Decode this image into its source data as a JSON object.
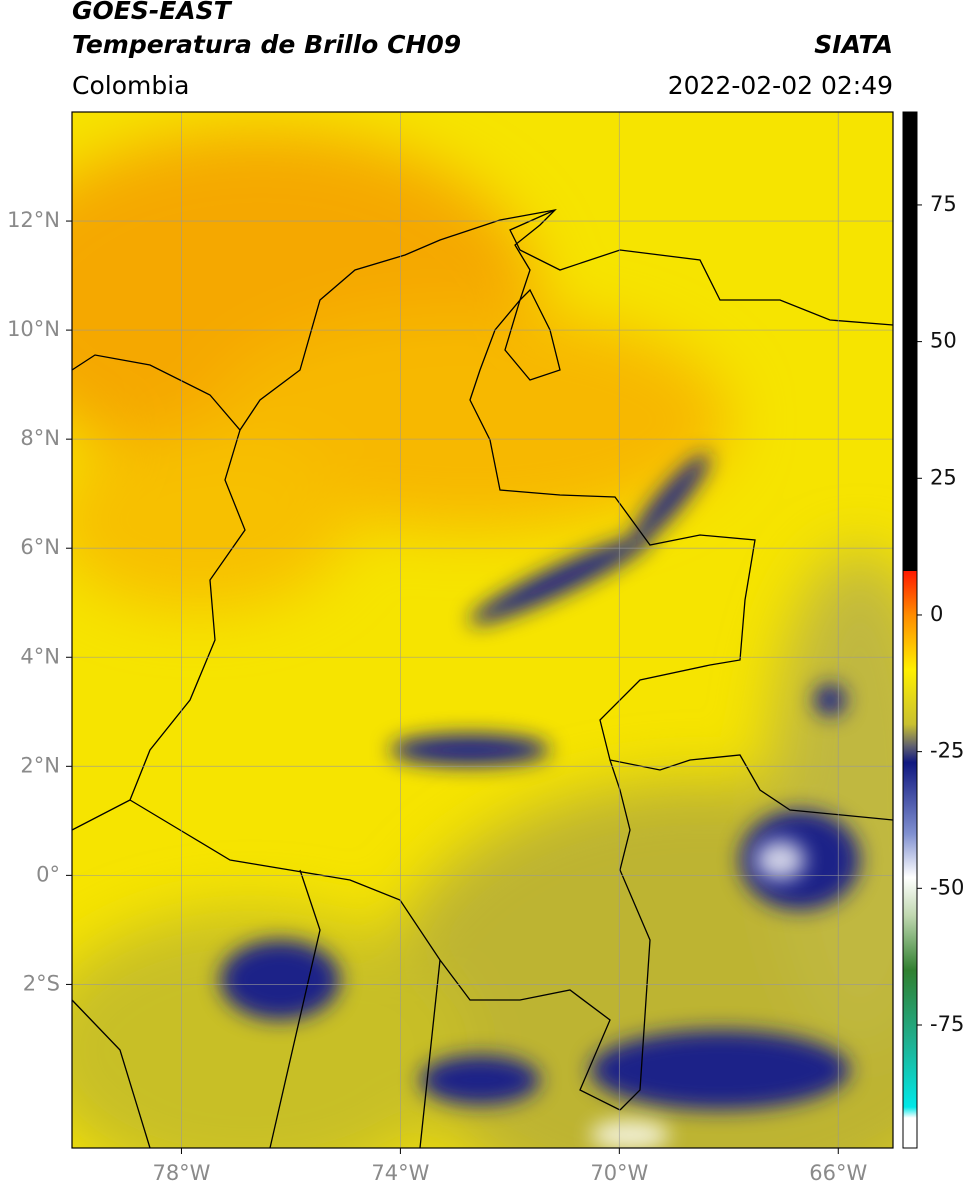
{
  "map": {
    "title": "GOES-EAST",
    "subtitle": "Temperatura de Brillo CH09",
    "region": "Colombia",
    "source": "SIATA",
    "datetime": "2022-02-02 02:49",
    "xlim": [
      -80,
      -65
    ],
    "ylim": [
      -5,
      14
    ],
    "xticks": [
      {
        "value": -78,
        "label": "78°W"
      },
      {
        "value": -74,
        "label": "74°W"
      },
      {
        "value": -70,
        "label": "70°W"
      },
      {
        "value": -66,
        "label": "66°W"
      }
    ],
    "yticks": [
      {
        "value": 12,
        "label": "12°N"
      },
      {
        "value": 10,
        "label": "10°N"
      },
      {
        "value": 8,
        "label": "8°N"
      },
      {
        "value": 6,
        "label": "6°N"
      },
      {
        "value": 4,
        "label": "4°N"
      },
      {
        "value": 2,
        "label": "2°N"
      },
      {
        "value": 0,
        "label": "0°"
      },
      {
        "value": -2,
        "label": "2°S"
      }
    ],
    "grid": true,
    "colorbar": {
      "lim": [
        -97.5,
        92
      ],
      "ticks": [
        75,
        50,
        25,
        0,
        -25,
        -50,
        -75
      ],
      "colorscale": [
        [
          92,
          "#000000"
        ],
        [
          8,
          "#000000"
        ],
        [
          8,
          "#ff1a00"
        ],
        [
          0,
          "#ff8c00"
        ],
        [
          -10,
          "#fff000"
        ],
        [
          -20,
          "#c8c030"
        ],
        [
          -24,
          "#606070"
        ],
        [
          -27,
          "#101880"
        ],
        [
          -40,
          "#8090d0"
        ],
        [
          -48,
          "#ffffff"
        ],
        [
          -55,
          "#c0d8b0"
        ],
        [
          -65,
          "#308030"
        ],
        [
          -78,
          "#20b090"
        ],
        [
          -90,
          "#00e8e8"
        ],
        [
          -92,
          "#ffffff"
        ],
        [
          -97.5,
          "#ffffff"
        ]
      ]
    }
  }
}
